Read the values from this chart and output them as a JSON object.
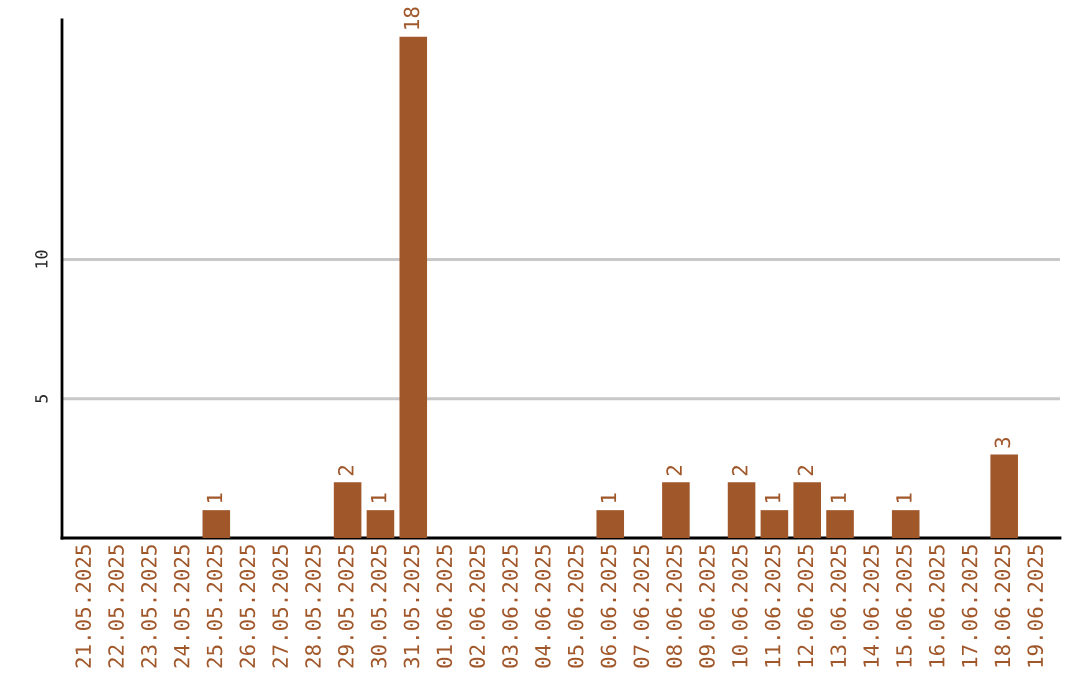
{
  "chart_data": {
    "type": "bar",
    "categories": [
      "21.05.2025",
      "22.05.2025",
      "23.05.2025",
      "24.05.2025",
      "25.05.2025",
      "26.05.2025",
      "27.05.2025",
      "28.05.2025",
      "29.05.2025",
      "30.05.2025",
      "31.05.2025",
      "01.06.2025",
      "02.06.2025",
      "03.06.2025",
      "04.06.2025",
      "05.06.2025",
      "06.06.2025",
      "07.06.2025",
      "08.06.2025",
      "09.06.2025",
      "10.06.2025",
      "11.06.2025",
      "12.06.2025",
      "13.06.2025",
      "14.06.2025",
      "15.06.2025",
      "16.06.2025",
      "17.06.2025",
      "18.06.2025",
      "19.06.2025"
    ],
    "values": [
      0,
      0,
      0,
      0,
      1,
      0,
      0,
      0,
      2,
      1,
      18,
      0,
      0,
      0,
      0,
      0,
      1,
      0,
      2,
      0,
      2,
      1,
      2,
      1,
      0,
      1,
      0,
      0,
      3,
      0
    ],
    "value_labels": [
      null,
      null,
      null,
      null,
      "1",
      null,
      null,
      null,
      "2",
      "1",
      "18",
      null,
      null,
      null,
      null,
      null,
      "1",
      null,
      "2",
      null,
      "2",
      "1",
      "2",
      "1",
      null,
      "1",
      null,
      null,
      "3",
      null
    ],
    "color": "#a0572a",
    "ylim": [
      0,
      18.6
    ],
    "yticks": [
      5,
      10
    ],
    "grid": "y",
    "legend": false
  }
}
